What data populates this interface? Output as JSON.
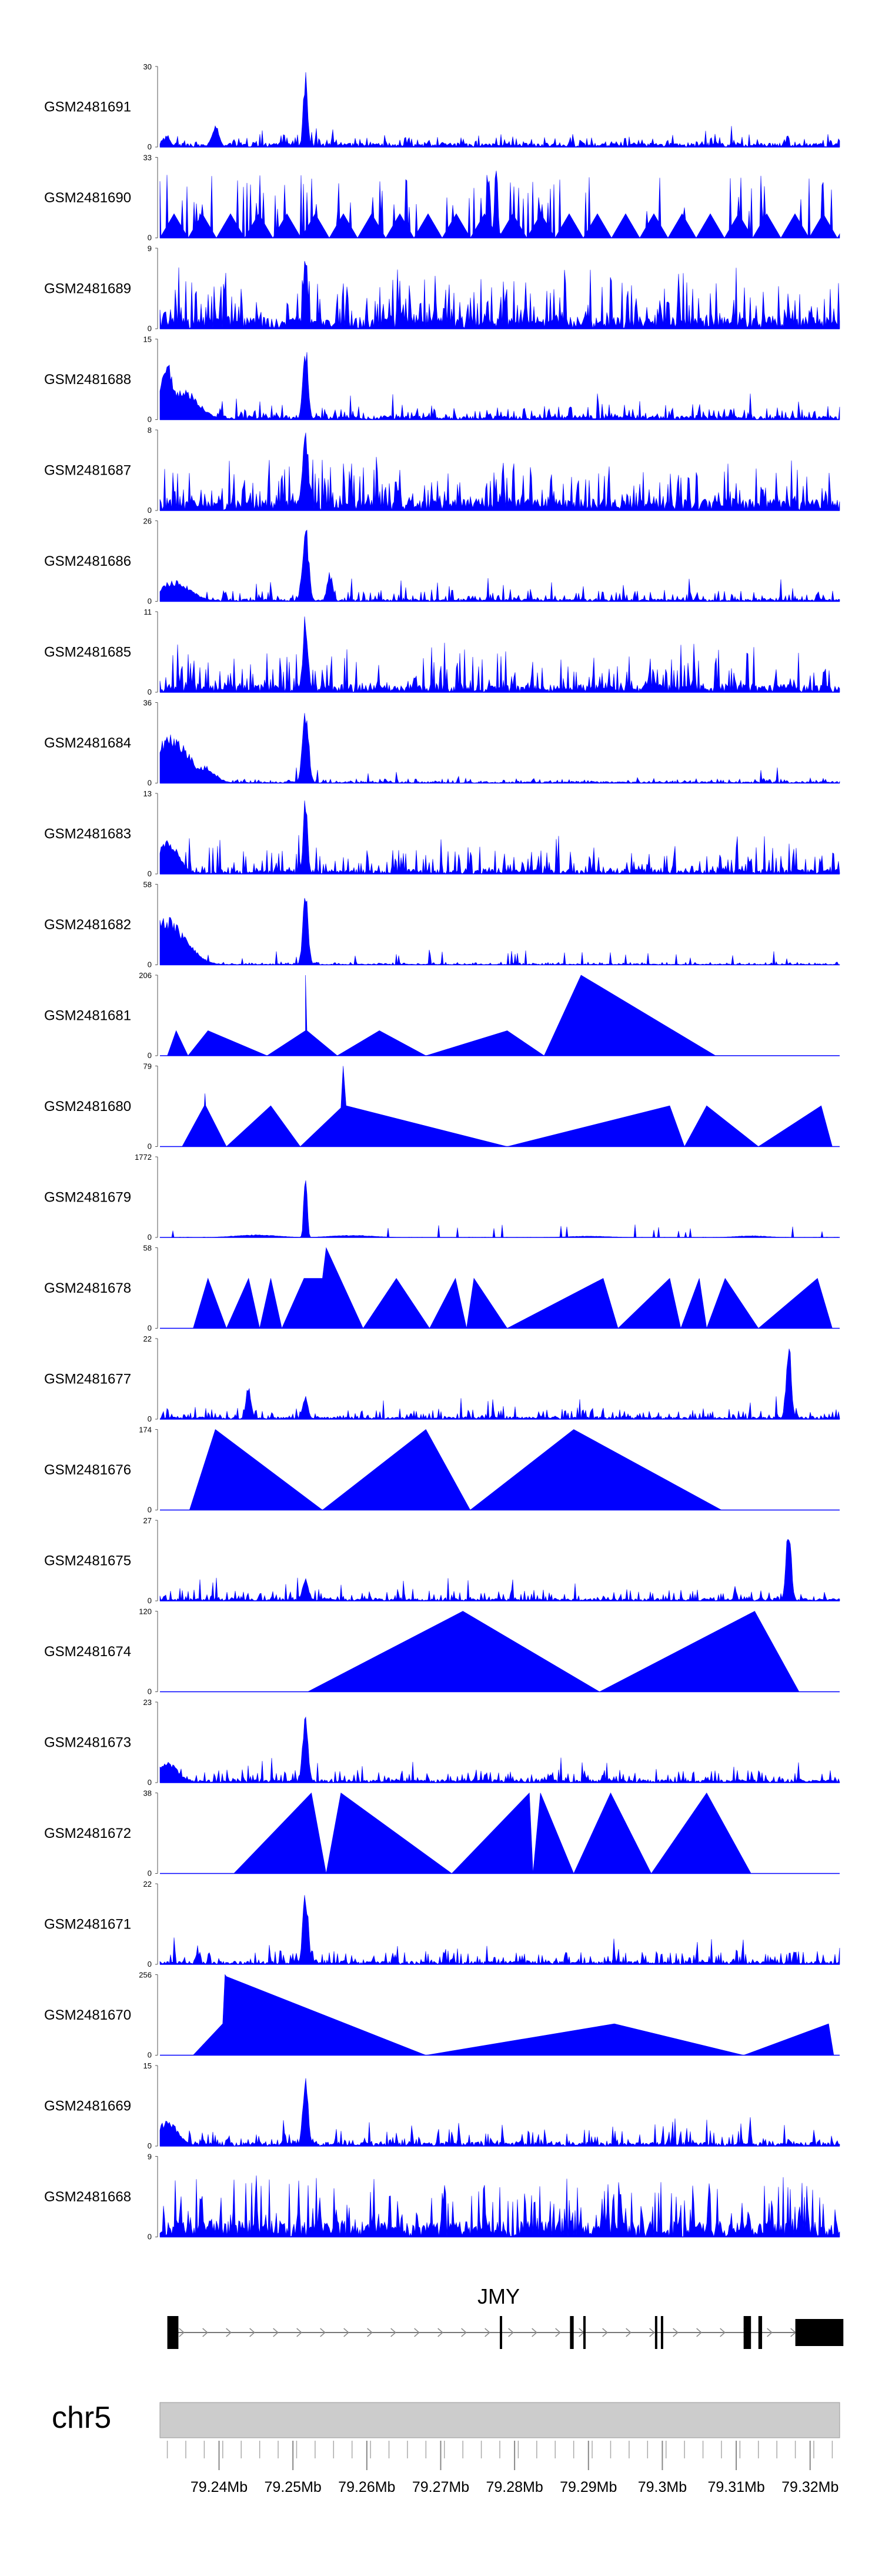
{
  "chart_data": {
    "type": "area",
    "title": "",
    "chromosome": "chr5",
    "gene": "JMY",
    "xlim": [
      79.232,
      79.324
    ],
    "x_unit": "Mb",
    "x_ticks": [
      "79.24Mb",
      "79.25Mb",
      "79.26Mb",
      "79.27Mb",
      "79.28Mb",
      "79.29Mb",
      "79.3Mb",
      "79.31Mb",
      "79.32Mb"
    ],
    "x_tick_values": [
      79.24,
      79.25,
      79.26,
      79.27,
      79.28,
      79.29,
      79.3,
      79.31,
      79.32
    ],
    "color": "#0000ff",
    "tracks": [
      {
        "name": "GSM2481691",
        "ymax": 30,
        "style": "dense",
        "seed": 91,
        "base": 0.05,
        "noise": 0.12,
        "peaks": [
          [
            79.2517,
            30,
            0.0004
          ],
          [
            79.2395,
            9,
            0.0007
          ],
          [
            79.233,
            5,
            0.0006
          ]
        ]
      },
      {
        "name": "GSM2481690",
        "ymax": 33,
        "style": "sparse_dense",
        "seed": 90,
        "base": 0.0,
        "noise": 0.35,
        "peaks": [
          [
            79.2775,
            33,
            0.0003
          ],
          [
            79.2765,
            30,
            0.0003
          ]
        ]
      },
      {
        "name": "GSM2481689",
        "ymax": 9,
        "style": "dense",
        "seed": 89,
        "base": 0.15,
        "noise": 0.55,
        "peaks": [
          [
            79.2517,
            9,
            0.0004
          ]
        ]
      },
      {
        "name": "GSM2481688",
        "ymax": 15,
        "style": "dense",
        "seed": 88,
        "base": 0.05,
        "noise": 0.15,
        "peaks": [
          [
            79.2517,
            15,
            0.0005
          ],
          [
            79.233,
            11,
            0.0012
          ],
          [
            79.235,
            6,
            0.003
          ]
        ]
      },
      {
        "name": "GSM2481687",
        "ymax": 8,
        "style": "dense",
        "seed": 87,
        "base": 0.15,
        "noise": 0.55,
        "peaks": [
          [
            79.2517,
            8,
            0.0006
          ]
        ]
      },
      {
        "name": "GSM2481686",
        "ymax": 26,
        "style": "dense",
        "seed": 86,
        "base": 0.03,
        "noise": 0.12,
        "peaks": [
          [
            79.2517,
            26,
            0.0006
          ],
          [
            79.255,
            10,
            0.0005
          ],
          [
            79.234,
            7,
            0.003
          ]
        ]
      },
      {
        "name": "GSM2481685",
        "ymax": 11,
        "style": "dense",
        "seed": 85,
        "base": 0.1,
        "noise": 0.45,
        "peaks": [
          [
            79.2517,
            11,
            0.0005
          ]
        ]
      },
      {
        "name": "GSM2481684",
        "ymax": 36,
        "style": "dense",
        "seed": 84,
        "base": 0.02,
        "noise": 0.05,
        "peaks": [
          [
            79.2517,
            36,
            0.0006
          ],
          [
            79.2335,
            22,
            0.0035
          ],
          [
            79.238,
            8,
            0.002
          ]
        ]
      },
      {
        "name": "GSM2481683",
        "ymax": 13,
        "style": "dense",
        "seed": 83,
        "base": 0.06,
        "noise": 0.3,
        "peaks": [
          [
            79.2517,
            13,
            0.0004
          ],
          [
            79.233,
            6,
            0.002
          ]
        ]
      },
      {
        "name": "GSM2481682",
        "ymax": 58,
        "style": "dense",
        "seed": 82,
        "base": 0.01,
        "noise": 0.03,
        "peaks": [
          [
            79.2517,
            58,
            0.0005
          ],
          [
            79.233,
            35,
            0.0035
          ]
        ]
      },
      {
        "name": "GSM2481681",
        "ymax": 206,
        "style": "tri",
        "seed": 81,
        "pts": [
          [
            79.233,
            0
          ],
          [
            79.2342,
            64
          ],
          [
            79.2358,
            0
          ],
          [
            79.2385,
            64
          ],
          [
            79.2465,
            0
          ],
          [
            79.2517,
            64
          ],
          [
            79.2517,
            206
          ],
          [
            79.2519,
            64
          ],
          [
            79.256,
            0
          ],
          [
            79.2617,
            64
          ],
          [
            79.268,
            0
          ],
          [
            79.279,
            64
          ],
          [
            79.284,
            0
          ],
          [
            79.289,
            206
          ],
          [
            79.3072,
            0
          ]
        ]
      },
      {
        "name": "GSM2481680",
        "ymax": 79,
        "style": "tri",
        "seed": 80,
        "pts": [
          [
            79.235,
            0
          ],
          [
            79.238,
            40
          ],
          [
            79.2381,
            52
          ],
          [
            79.2382,
            40
          ],
          [
            79.241,
            0
          ],
          [
            79.247,
            40
          ],
          [
            79.251,
            0
          ],
          [
            79.2565,
            38
          ],
          [
            79.2568,
            79
          ],
          [
            79.2572,
            40
          ],
          [
            79.279,
            0
          ],
          [
            79.301,
            40
          ],
          [
            79.303,
            0
          ],
          [
            79.306,
            40
          ],
          [
            79.313,
            0
          ],
          [
            79.3215,
            40
          ],
          [
            79.323,
            0
          ]
        ]
      },
      {
        "name": "GSM2481679",
        "ymax": 1772,
        "style": "dense",
        "seed": 79,
        "base": 0.002,
        "noise": 0.004,
        "peaks": [
          [
            79.2517,
            1772,
            0.0003
          ],
          [
            79.245,
            60,
            0.004
          ],
          [
            79.258,
            50,
            0.004
          ],
          [
            79.312,
            40,
            0.003
          ],
          [
            79.29,
            30,
            0.004
          ]
        ]
      },
      {
        "name": "GSM2481678",
        "ymax": 58,
        "style": "tri",
        "seed": 78,
        "pts": [
          [
            79.2365,
            0
          ],
          [
            79.2385,
            36
          ],
          [
            79.241,
            0
          ],
          [
            79.244,
            36
          ],
          [
            79.2455,
            0
          ],
          [
            79.247,
            36
          ],
          [
            79.2485,
            0
          ],
          [
            79.2515,
            36
          ],
          [
            79.254,
            36
          ],
          [
            79.2545,
            58
          ],
          [
            79.2595,
            0
          ],
          [
            79.264,
            36
          ],
          [
            79.2685,
            0
          ],
          [
            79.272,
            36
          ],
          [
            79.2735,
            0
          ],
          [
            79.2745,
            36
          ],
          [
            79.279,
            0
          ],
          [
            79.292,
            36
          ],
          [
            79.294,
            0
          ],
          [
            79.301,
            36
          ],
          [
            79.3025,
            0
          ],
          [
            79.305,
            36
          ],
          [
            79.306,
            0
          ],
          [
            79.3085,
            36
          ],
          [
            79.313,
            0
          ],
          [
            79.321,
            36
          ],
          [
            79.323,
            0
          ]
        ]
      },
      {
        "name": "GSM2481677",
        "ymax": 22,
        "style": "dense",
        "seed": 77,
        "base": 0.03,
        "noise": 0.12,
        "peaks": [
          [
            79.3171,
            22,
            0.0005
          ],
          [
            79.244,
            10,
            0.0005
          ],
          [
            79.2517,
            7,
            0.0005
          ]
        ]
      },
      {
        "name": "GSM2481676",
        "ymax": 174,
        "style": "tri",
        "seed": 76,
        "pts": [
          [
            79.236,
            0
          ],
          [
            79.2395,
            174
          ],
          [
            79.254,
            0
          ],
          [
            79.268,
            174
          ],
          [
            79.274,
            0
          ],
          [
            79.288,
            174
          ],
          [
            79.308,
            0
          ]
        ]
      },
      {
        "name": "GSM2481675",
        "ymax": 27,
        "style": "dense",
        "seed": 75,
        "base": 0.03,
        "noise": 0.12,
        "peaks": [
          [
            79.3171,
            27,
            0.0005
          ],
          [
            79.2517,
            8,
            0.0006
          ]
        ]
      },
      {
        "name": "GSM2481674",
        "ymax": 120,
        "style": "tri",
        "seed": 74,
        "pts": [
          [
            79.252,
            0
          ],
          [
            79.273,
            120
          ],
          [
            79.2915,
            0
          ],
          [
            79.3125,
            120
          ],
          [
            79.3185,
            0
          ]
        ]
      },
      {
        "name": "GSM2481673",
        "ymax": 23,
        "style": "dense",
        "seed": 73,
        "base": 0.04,
        "noise": 0.14,
        "peaks": [
          [
            79.2517,
            23,
            0.0005
          ],
          [
            79.233,
            6,
            0.002
          ]
        ]
      },
      {
        "name": "GSM2481672",
        "ymax": 38,
        "style": "tri",
        "seed": 72,
        "pts": [
          [
            79.242,
            0
          ],
          [
            79.2525,
            38
          ],
          [
            79.2545,
            0
          ],
          [
            79.2565,
            38
          ],
          [
            79.2715,
            0
          ],
          [
            79.282,
            38
          ],
          [
            79.2825,
            0
          ],
          [
            79.2835,
            38
          ],
          [
            79.288,
            0
          ],
          [
            79.293,
            38
          ],
          [
            79.2985,
            0
          ],
          [
            79.306,
            38
          ],
          [
            79.312,
            0
          ]
        ]
      },
      {
        "name": "GSM2481671",
        "ymax": 22,
        "style": "dense",
        "seed": 71,
        "base": 0.04,
        "noise": 0.16,
        "peaks": [
          [
            79.2517,
            22,
            0.0005
          ]
        ]
      },
      {
        "name": "GSM2481670",
        "ymax": 256,
        "style": "tri",
        "seed": 70,
        "pts": [
          [
            79.2365,
            0
          ],
          [
            79.2405,
            100
          ],
          [
            79.2408,
            256
          ],
          [
            79.241,
            250
          ],
          [
            79.268,
            0
          ],
          [
            79.2935,
            100
          ],
          [
            79.311,
            0
          ],
          [
            79.3225,
            100
          ],
          [
            79.3232,
            0
          ]
        ]
      },
      {
        "name": "GSM2481669",
        "ymax": 15,
        "style": "dense",
        "seed": 69,
        "base": 0.05,
        "noise": 0.18,
        "peaks": [
          [
            79.2517,
            15,
            0.0005
          ],
          [
            79.233,
            5,
            0.002
          ]
        ]
      },
      {
        "name": "GSM2481668",
        "ymax": 9,
        "style": "dense",
        "seed": 68,
        "base": 0.2,
        "noise": 0.6,
        "peaks": []
      }
    ],
    "gene_model": {
      "name": "JMY",
      "strand": "+",
      "exons": [
        [
          79.233,
          79.2345
        ],
        [
          79.278,
          79.2783
        ],
        [
          79.2875,
          79.288
        ],
        [
          79.2893,
          79.2896
        ],
        [
          79.299,
          79.2993
        ],
        [
          79.2998,
          79.3001
        ],
        [
          79.311,
          79.312
        ],
        [
          79.313,
          79.3135
        ],
        [
          79.318,
          79.3245
        ]
      ]
    }
  }
}
